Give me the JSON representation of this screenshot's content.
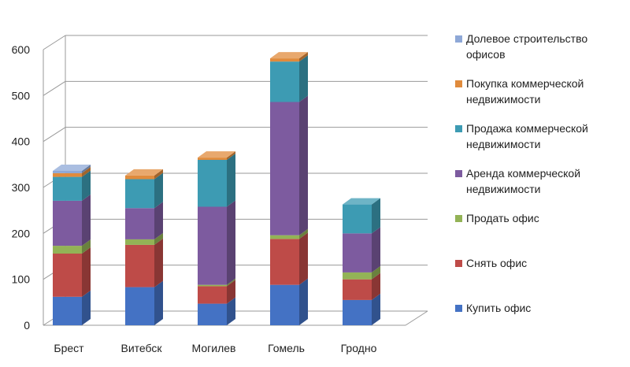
{
  "chart_data": {
    "type": "bar",
    "stacked": true,
    "three_d": true,
    "categories": [
      "Брест",
      "Витебск",
      "Могилев",
      "Гомель",
      "Гродно"
    ],
    "ylim": [
      0,
      600
    ],
    "yticks": [
      "0",
      "100",
      "200",
      "300",
      "400",
      "500",
      "600"
    ],
    "grid": true,
    "legend_position": "right",
    "series": [
      {
        "name": "Купить офис",
        "color": "#4472C4",
        "values": [
          62,
          83,
          47,
          88,
          55
        ]
      },
      {
        "name": "Снять офис",
        "color": "#BE4B48",
        "values": [
          94,
          92,
          38,
          100,
          45
        ]
      },
      {
        "name": "Продать офис",
        "color": "#93B356",
        "values": [
          17,
          12,
          3,
          8,
          15
        ]
      },
      {
        "name": "Аренда коммерческой недвижимости",
        "color": "#7D5B9F",
        "values": [
          98,
          68,
          170,
          290,
          85
        ]
      },
      {
        "name": "Продажа коммерческой недвижимости",
        "color": "#3D9BB3",
        "values": [
          52,
          63,
          102,
          88,
          63
        ]
      },
      {
        "name": "Покупка коммерческой недвижимости",
        "color": "#E08B3C",
        "values": [
          8,
          8,
          5,
          7,
          0
        ]
      },
      {
        "name": "Долевое строительство офисов",
        "color": "#8EA8D7",
        "values": [
          5,
          0,
          0,
          0,
          0
        ]
      }
    ]
  }
}
